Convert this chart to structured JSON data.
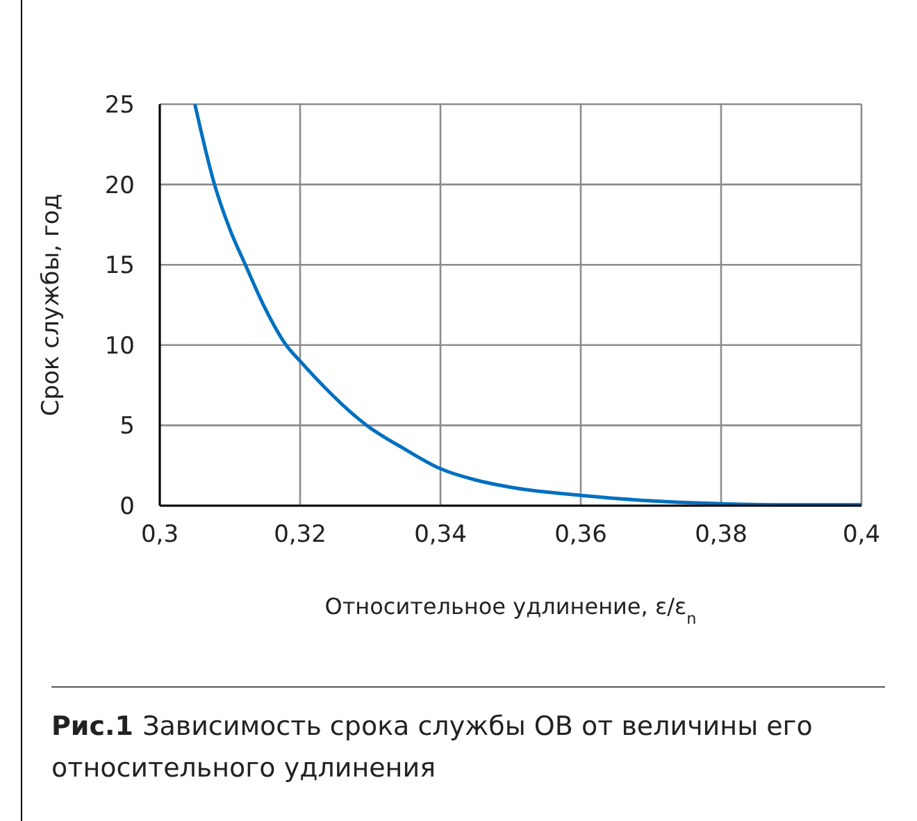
{
  "chart_data": {
    "type": "line",
    "xlabel": "Относительное удлинение, ε/ε$_{n}$",
    "ylabel": "Срок службы, год",
    "annotations": [
      "Рис.1",
      "Зависимость срока службы ОВ от величины его относительного удлинения"
    ],
    "x": [
      0.305,
      0.3078,
      0.31,
      0.3122,
      0.315,
      0.318,
      0.32,
      0.3295,
      0.335,
      0.34,
      0.345,
      0.35,
      0.355,
      0.36,
      0.37,
      0.38,
      0.39,
      0.4
    ],
    "series": [
      {
        "color": "#0070c0",
        "values": [
          25,
          20,
          17.2,
          15,
          12.3,
          10,
          9,
          5,
          3.5,
          2.3,
          1.6,
          1.15,
          0.85,
          0.64,
          0.3,
          0.12,
          0.05,
          0.05
        ]
      }
    ],
    "xlim": [
      0.3,
      0.4
    ],
    "xticks": [
      {
        "value": 0.3,
        "label": "0,3"
      },
      {
        "value": 0.32,
        "label": "0,32"
      },
      {
        "value": 0.34,
        "label": "0,34"
      },
      {
        "value": 0.36,
        "label": "0,36"
      },
      {
        "value": 0.38,
        "label": "0,38"
      },
      {
        "value": 0.4,
        "label": "0,4"
      }
    ],
    "ylim": [
      0,
      25
    ],
    "yticks": [
      0,
      5,
      10,
      15,
      20,
      25
    ],
    "grid": true,
    "legend": false,
    "marker": "none",
    "line_style": "solid"
  }
}
